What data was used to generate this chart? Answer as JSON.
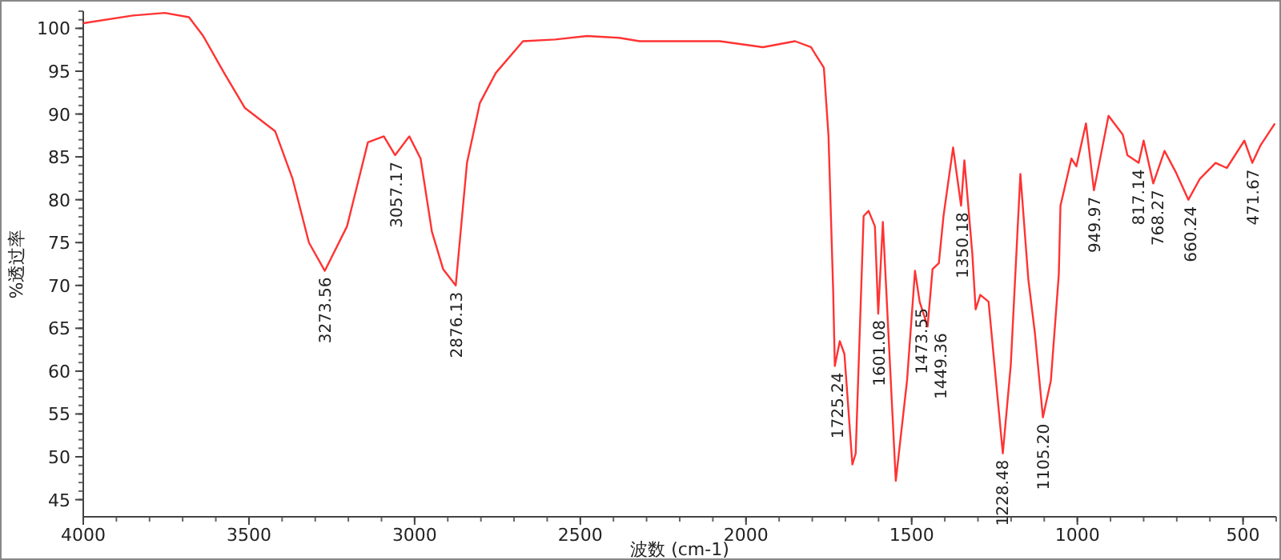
{
  "chart_data": {
    "type": "line",
    "xlabel": "波数 (cm-1)",
    "ylabel": "%透过率",
    "xlim": [
      4000,
      400
    ],
    "ylim": [
      43,
      102
    ],
    "xticks": [
      4000,
      3500,
      3000,
      2500,
      2000,
      1500,
      1000,
      500
    ],
    "yticks": [
      45,
      50,
      55,
      60,
      65,
      70,
      75,
      80,
      85,
      90,
      95,
      100
    ],
    "grid": false,
    "series": [
      {
        "color": "#ff3333",
        "x": [
          4000,
          3850,
          3754,
          3681,
          3638,
          3575,
          3512,
          3421,
          3368,
          3319,
          3271,
          3204,
          3141,
          3093,
          3059,
          3016,
          2982,
          2948,
          2914,
          2876,
          2842,
          2803,
          2755,
          2673,
          2576,
          2480,
          2383,
          2321,
          2079,
          1949,
          1852,
          1804,
          1765,
          1751,
          1737,
          1732,
          1717,
          1703,
          1679,
          1669,
          1645,
          1630,
          1611,
          1601,
          1587,
          1548,
          1514,
          1490,
          1476,
          1452,
          1437,
          1418,
          1404,
          1375,
          1351,
          1341,
          1317,
          1307,
          1293,
          1268,
          1225,
          1201,
          1172,
          1148,
          1128,
          1104,
          1080,
          1056,
          1051,
          1018,
          1003,
          974,
          950,
          906,
          863,
          849,
          815,
          800,
          771,
          737,
          704,
          665,
          631,
          583,
          549,
          496,
          472,
          448,
          404
        ],
        "values": [
          100.6,
          101.5,
          101.8,
          101.3,
          99.1,
          94.8,
          90.7,
          88.0,
          82.4,
          75.0,
          71.7,
          76.9,
          86.7,
          87.4,
          85.2,
          87.4,
          84.8,
          76.3,
          71.9,
          70.0,
          84.3,
          91.3,
          94.8,
          98.5,
          98.7,
          99.1,
          98.9,
          98.5,
          98.5,
          97.8,
          98.5,
          97.8,
          95.4,
          87.4,
          69.4,
          60.6,
          63.5,
          62.0,
          49.1,
          50.4,
          78.1,
          78.7,
          76.9,
          66.7,
          77.4,
          47.2,
          58.9,
          71.7,
          68.1,
          65.2,
          71.9,
          72.6,
          78.1,
          86.1,
          79.3,
          84.6,
          73.7,
          67.2,
          68.9,
          68.1,
          50.4,
          60.7,
          83.0,
          70.7,
          64.4,
          54.6,
          58.9,
          71.3,
          79.3,
          84.8,
          83.9,
          88.9,
          81.1,
          89.8,
          87.6,
          85.2,
          84.3,
          86.9,
          81.9,
          85.7,
          83.3,
          80.0,
          82.4,
          84.3,
          83.7,
          86.9,
          84.3,
          86.3,
          88.9
        ]
      }
    ],
    "annotations": [
      {
        "text": "3273.56",
        "x": 3273.56,
        "y": 71.7
      },
      {
        "text": "3057.17",
        "x": 3057.17,
        "y": 85.2
      },
      {
        "text": "2876.13",
        "x": 2876.13,
        "y": 70.0
      },
      {
        "text": "1725.24",
        "x": 1725.24,
        "y": 60.6
      },
      {
        "text": "1601.08",
        "x": 1601.08,
        "y": 66.7
      },
      {
        "text": "1473.55",
        "x": 1473.55,
        "y": 68.1
      },
      {
        "text": "1449.36",
        "x": 1449.36,
        "y": 65.2
      },
      {
        "text": "1350.18",
        "x": 1350.18,
        "y": 79.3
      },
      {
        "text": "1228.48",
        "x": 1228.48,
        "y": 50.4
      },
      {
        "text": "1105.20",
        "x": 1105.2,
        "y": 54.6
      },
      {
        "text": "949.97",
        "x": 949.97,
        "y": 81.1
      },
      {
        "text": "817.14",
        "x": 817.14,
        "y": 84.3
      },
      {
        "text": "768.27",
        "x": 768.27,
        "y": 81.9
      },
      {
        "text": "660.24",
        "x": 660.24,
        "y": 80.0
      },
      {
        "text": "471.67",
        "x": 471.67,
        "y": 84.3
      }
    ]
  }
}
